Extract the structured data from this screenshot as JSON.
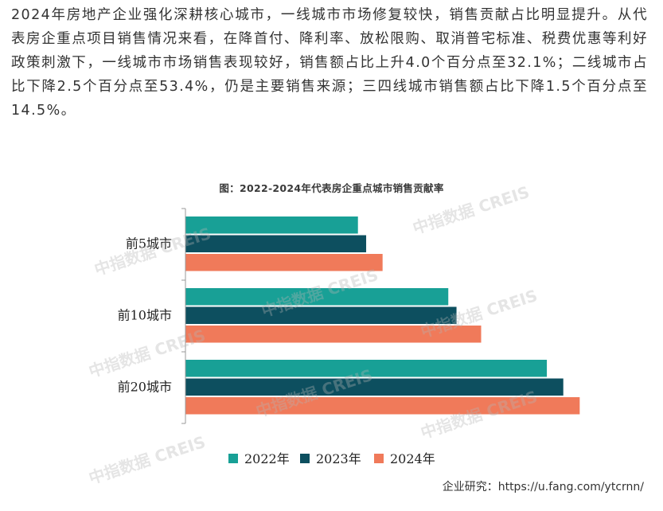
{
  "article": {
    "paragraph": "2024年房地产企业强化深耕核心城市，一线城市市场修复较快，销售贡献占比明显提升。从代表房企重点项目销售情况来看，在降首付、降利率、放松限购、取消普宅标准、税费优惠等利好政策刺激下，一线城市市场销售表现较好，销售额占比上升4.0个百分点至32.1%；二线城市占比下降2.5个百分点至53.4%，仍是主要销售来源；三四线城市销售额占比下降1.5个百分点至14.5%。"
  },
  "watermark": {
    "text": "中指数据 CREIS"
  },
  "chart_data": {
    "type": "bar",
    "orientation": "horizontal",
    "title": "图：2022-2024年代表房企重点城市销售贡献率",
    "categories": [
      "前5城市",
      "前10城市",
      "前20城市"
    ],
    "series": [
      {
        "name": "2022年",
        "color": "#18a096",
        "values": [
          21,
          32,
          44
        ]
      },
      {
        "name": "2023年",
        "color": "#0d4f5f",
        "values": [
          22,
          33,
          46
        ]
      },
      {
        "name": "2024年",
        "color": "#f07a5a",
        "values": [
          24,
          36,
          48
        ]
      }
    ],
    "xlim": [
      0,
      50
    ],
    "grid": false,
    "legend_position": "bottom",
    "xlabel": "",
    "ylabel": ""
  },
  "footer": {
    "source": "企业研究：https://u.fang.com/ytcrnn/"
  }
}
